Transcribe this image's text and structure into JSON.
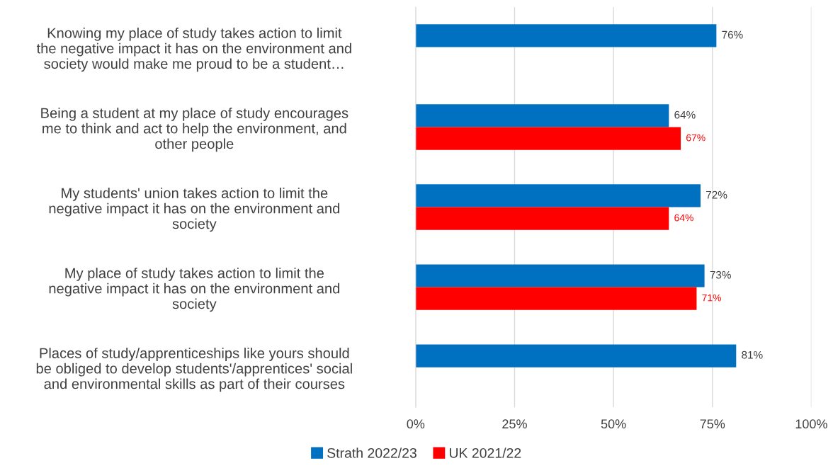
{
  "chart_data": {
    "type": "bar",
    "orientation": "horizontal",
    "categories": [
      "Knowing my place of study takes action to limit\nthe negative impact it has on the environment and\nsociety would make me proud to be a student…",
      "Being a student at my place of study encourages\nme to think and act to help the environment, and\nother people",
      "My students' union takes action to limit the\nnegative impact it has on the environment and\nsociety",
      "My place of study takes action to limit the\nnegative impact it has on the environment and\nsociety",
      "Places of study/apprenticeships like yours should\nbe obliged to develop students'/apprentices' social\nand environmental skills as part of their courses"
    ],
    "series": [
      {
        "name": "Strath 2022/23",
        "color": "#0070c0",
        "values": [
          76,
          64,
          72,
          73,
          81
        ],
        "value_labels": [
          "76%",
          "64%",
          "72%",
          "73%",
          "81%"
        ]
      },
      {
        "name": "UK 2021/22",
        "color": "#ff0000",
        "values": [
          null,
          67,
          64,
          71,
          null
        ],
        "value_labels": [
          null,
          "67%",
          "64%",
          "71%",
          null
        ]
      }
    ],
    "xlim": [
      0,
      100
    ],
    "xticks": [
      {
        "value": 0,
        "label": "0%"
      },
      {
        "value": 25,
        "label": "25%"
      },
      {
        "value": 50,
        "label": "50%"
      },
      {
        "value": 75,
        "label": "75%"
      },
      {
        "value": 100,
        "label": "100%"
      }
    ],
    "grid": "x",
    "legend": "bottom"
  }
}
